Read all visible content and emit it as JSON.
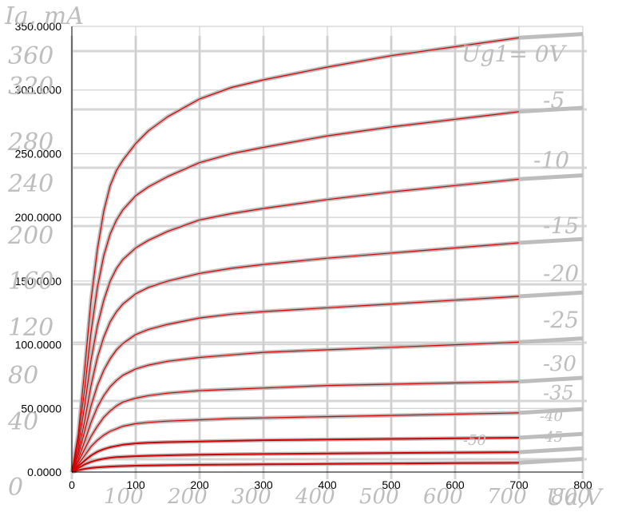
{
  "chart_data": {
    "type": "line",
    "x_ticks": [
      0,
      100,
      200,
      300,
      400,
      500,
      600,
      700,
      800
    ],
    "y_ticks": [
      "0.0000",
      "50.0000",
      "100.0000",
      "150.0000",
      "200.0000",
      "250.0000",
      "300.0000",
      "350.0000"
    ],
    "xlim": [
      0,
      800
    ],
    "ylim": [
      0,
      350
    ],
    "grid": true,
    "scan_labels": {
      "y_axis": "Ia, mA",
      "x_axis": "Ua,V",
      "curve_header": "Ug1= 0V",
      "curve_labels": [
        "-5",
        "-10",
        "-15",
        "-20",
        "-25",
        "-30",
        "-35",
        "-40",
        "-45",
        "-50"
      ],
      "y_ticks": [
        "360",
        "320",
        "280",
        "240",
        "200",
        "160",
        "120",
        "80",
        "40",
        "0"
      ],
      "x_ticks": [
        "100",
        "200",
        "300",
        "400",
        "500",
        "600",
        "700",
        "800"
      ]
    },
    "series": [
      {
        "grid_voltage": 0,
        "x": [
          0,
          10,
          20,
          30,
          40,
          50,
          60,
          70,
          80,
          100,
          120,
          150,
          200,
          250,
          300,
          400,
          500,
          600,
          700
        ],
        "y": [
          0,
          30,
          80,
          135,
          175,
          205,
          225,
          237,
          245,
          258,
          268,
          279,
          293,
          302,
          308,
          318,
          327,
          334,
          341
        ]
      },
      {
        "grid_voltage": -5,
        "x": [
          0,
          10,
          20,
          30,
          40,
          50,
          60,
          70,
          80,
          100,
          120,
          150,
          200,
          250,
          300,
          400,
          500,
          600,
          700
        ],
        "y": [
          0,
          25,
          65,
          110,
          145,
          170,
          187,
          198,
          206,
          217,
          224,
          232,
          243,
          250,
          255,
          264,
          271,
          277,
          283
        ]
      },
      {
        "grid_voltage": -10,
        "x": [
          0,
          10,
          20,
          30,
          40,
          50,
          60,
          70,
          80,
          100,
          120,
          150,
          200,
          250,
          300,
          400,
          500,
          600,
          700
        ],
        "y": [
          0,
          20,
          52,
          88,
          115,
          135,
          150,
          160,
          167,
          176,
          182,
          189,
          198,
          203,
          207,
          214,
          220,
          225,
          230
        ]
      },
      {
        "grid_voltage": -15,
        "x": [
          0,
          10,
          20,
          30,
          40,
          50,
          60,
          70,
          80,
          100,
          120,
          150,
          200,
          250,
          300,
          400,
          500,
          600,
          700
        ],
        "y": [
          0,
          16,
          40,
          68,
          90,
          106,
          118,
          126,
          132,
          140,
          145,
          150,
          156,
          160,
          163,
          168,
          172,
          176,
          180
        ]
      },
      {
        "grid_voltage": -20,
        "x": [
          0,
          10,
          20,
          30,
          40,
          50,
          60,
          70,
          80,
          100,
          120,
          150,
          200,
          250,
          300,
          400,
          500,
          600,
          700
        ],
        "y": [
          0,
          13,
          32,
          52,
          68,
          80,
          89,
          96,
          101,
          108,
          112,
          116,
          121,
          124,
          126,
          129,
          132,
          135,
          138
        ]
      },
      {
        "grid_voltage": -25,
        "x": [
          0,
          10,
          20,
          30,
          40,
          50,
          60,
          70,
          80,
          100,
          120,
          150,
          200,
          250,
          300,
          400,
          500,
          600,
          700
        ],
        "y": [
          0,
          10,
          24,
          39,
          51,
          60,
          67,
          72,
          76,
          81,
          84,
          87,
          90,
          92,
          94,
          96,
          98,
          100,
          102
        ]
      },
      {
        "grid_voltage": -30,
        "x": [
          0,
          10,
          20,
          30,
          40,
          50,
          60,
          70,
          80,
          100,
          120,
          150,
          200,
          250,
          300,
          400,
          500,
          600,
          700
        ],
        "y": [
          0,
          8,
          18,
          28,
          36,
          43,
          48,
          52,
          55,
          58,
          60,
          62,
          64,
          65,
          66,
          68,
          69,
          70,
          71
        ]
      },
      {
        "grid_voltage": -35,
        "x": [
          0,
          10,
          20,
          30,
          40,
          50,
          60,
          70,
          80,
          100,
          120,
          150,
          200,
          250,
          300,
          400,
          500,
          600,
          700
        ],
        "y": [
          0,
          6,
          13,
          20,
          25,
          29,
          32,
          34,
          36,
          38,
          39,
          40,
          41,
          42,
          42.5,
          43.5,
          44.5,
          45.5,
          46.5
        ]
      },
      {
        "grid_voltage": -40,
        "x": [
          0,
          10,
          20,
          30,
          40,
          50,
          60,
          70,
          80,
          100,
          120,
          150,
          200,
          250,
          300,
          400,
          500,
          600,
          700
        ],
        "y": [
          0,
          4.5,
          9,
          13,
          16,
          18,
          19.5,
          20.5,
          21.5,
          22.5,
          23,
          23.5,
          24,
          24.5,
          25,
          25.5,
          26,
          26.5,
          27
        ]
      },
      {
        "grid_voltage": -45,
        "x": [
          0,
          10,
          20,
          30,
          40,
          50,
          60,
          70,
          80,
          100,
          120,
          150,
          200,
          250,
          300,
          400,
          500,
          600,
          700
        ],
        "y": [
          0,
          3,
          6,
          8,
          9.5,
          10.5,
          11.2,
          11.7,
          12,
          12.5,
          12.8,
          13.2,
          13.6,
          14,
          14.2,
          14.6,
          15,
          15.3,
          15.6
        ]
      },
      {
        "grid_voltage": -50,
        "x": [
          0,
          10,
          20,
          30,
          40,
          50,
          60,
          70,
          80,
          100,
          120,
          150,
          200,
          250,
          300,
          400,
          500,
          600,
          700
        ],
        "y": [
          0,
          1.5,
          2.5,
          3.2,
          3.7,
          4,
          4.3,
          4.5,
          4.7,
          5,
          5.2,
          5.4,
          5.7,
          5.9,
          6.1,
          6.4,
          6.7,
          7,
          7.3
        ]
      }
    ],
    "colors": {
      "fit_curve": "#d40000",
      "scan_curve": "#bdbdbd",
      "grid": "#c8c8c8",
      "scan_grid": "#d6d6d6"
    }
  }
}
